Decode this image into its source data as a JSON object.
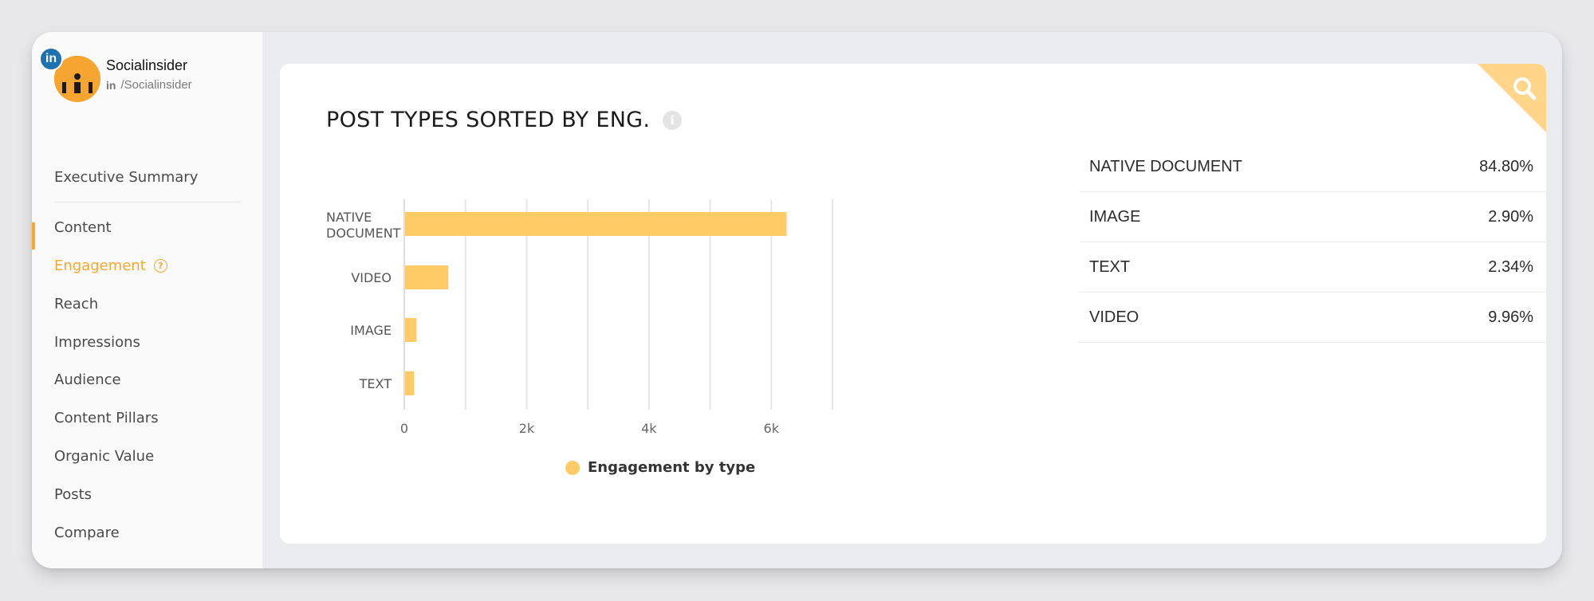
{
  "profile": {
    "name": "Socialinsider",
    "network_badge": "in",
    "handle_prefix": "in",
    "handle": "/Socialinsider"
  },
  "nav": {
    "items": [
      {
        "label": "Executive Summary",
        "active": false
      },
      {
        "label": "Content",
        "active": false
      },
      {
        "label": "Engagement",
        "active": true
      },
      {
        "label": "Reach",
        "active": false
      },
      {
        "label": "Impressions",
        "active": false
      },
      {
        "label": "Audience",
        "active": false
      },
      {
        "label": "Content Pillars",
        "active": false
      },
      {
        "label": "Organic Value",
        "active": false
      },
      {
        "label": "Posts",
        "active": false
      },
      {
        "label": "Compare",
        "active": false
      }
    ],
    "help_icon": "question-circle-icon"
  },
  "card": {
    "title": "POST TYPES SORTED BY ENG.",
    "info_icon": "info-icon",
    "corner_icon": "search-icon"
  },
  "colors": {
    "accent": "#f5a832",
    "bar": "#ffcb66",
    "corner": "#ffd58a"
  },
  "chart_data": {
    "type": "bar",
    "orientation": "horizontal",
    "categories": [
      "NATIVE DOCUMENT",
      "VIDEO",
      "IMAGE",
      "TEXT"
    ],
    "series": [
      {
        "name": "Engagement by type",
        "values": [
          6250,
          720,
          200,
          160
        ]
      }
    ],
    "xticks": [
      "0",
      "2k",
      "4k",
      "6k"
    ],
    "xlim": [
      0,
      7000
    ],
    "grid": true,
    "legend_position": "bottom"
  },
  "table": {
    "rows": [
      {
        "label": "NATIVE DOCUMENT",
        "value": "84.80%"
      },
      {
        "label": "IMAGE",
        "value": "2.90%"
      },
      {
        "label": "TEXT",
        "value": "2.34%"
      },
      {
        "label": "VIDEO",
        "value": "9.96%"
      }
    ]
  }
}
